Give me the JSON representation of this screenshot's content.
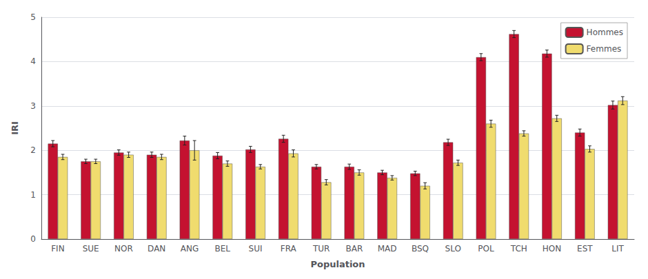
{
  "chart_data": {
    "type": "bar",
    "xlabel": "Population",
    "ylabel": "IRI",
    "categories": [
      "FIN",
      "SUE",
      "NOR",
      "DAN",
      "ANG",
      "BEL",
      "SUI",
      "FRA",
      "TUR",
      "BAR",
      "MAD",
      "BSQ",
      "SLO",
      "POL",
      "TCH",
      "HON",
      "EST",
      "LIT"
    ],
    "series": [
      {
        "name": "Hommes",
        "color": "#c41230",
        "values": [
          2.15,
          1.75,
          1.95,
          1.9,
          2.22,
          1.88,
          2.02,
          2.26,
          1.63,
          1.63,
          1.5,
          1.48,
          2.18,
          4.1,
          4.62,
          4.18,
          2.4,
          3.02
        ],
        "errors": [
          0.07,
          0.05,
          0.06,
          0.06,
          0.1,
          0.07,
          0.07,
          0.08,
          0.05,
          0.06,
          0.05,
          0.05,
          0.07,
          0.08,
          0.08,
          0.08,
          0.08,
          0.09
        ]
      },
      {
        "name": "Femmes",
        "color": "#f0dc6e",
        "values": [
          1.85,
          1.75,
          1.9,
          1.85,
          2.0,
          1.7,
          1.63,
          1.93,
          1.28,
          1.5,
          1.38,
          1.2,
          1.72,
          2.6,
          2.38,
          2.72,
          2.03,
          3.12
        ],
        "errors": [
          0.06,
          0.05,
          0.06,
          0.06,
          0.22,
          0.06,
          0.05,
          0.08,
          0.06,
          0.06,
          0.05,
          0.07,
          0.06,
          0.08,
          0.06,
          0.07,
          0.07,
          0.09
        ]
      }
    ],
    "ylim": [
      0,
      5
    ],
    "yticks": [
      0,
      1,
      2,
      3,
      4,
      5
    ],
    "grid": true,
    "legend": "upper right"
  }
}
